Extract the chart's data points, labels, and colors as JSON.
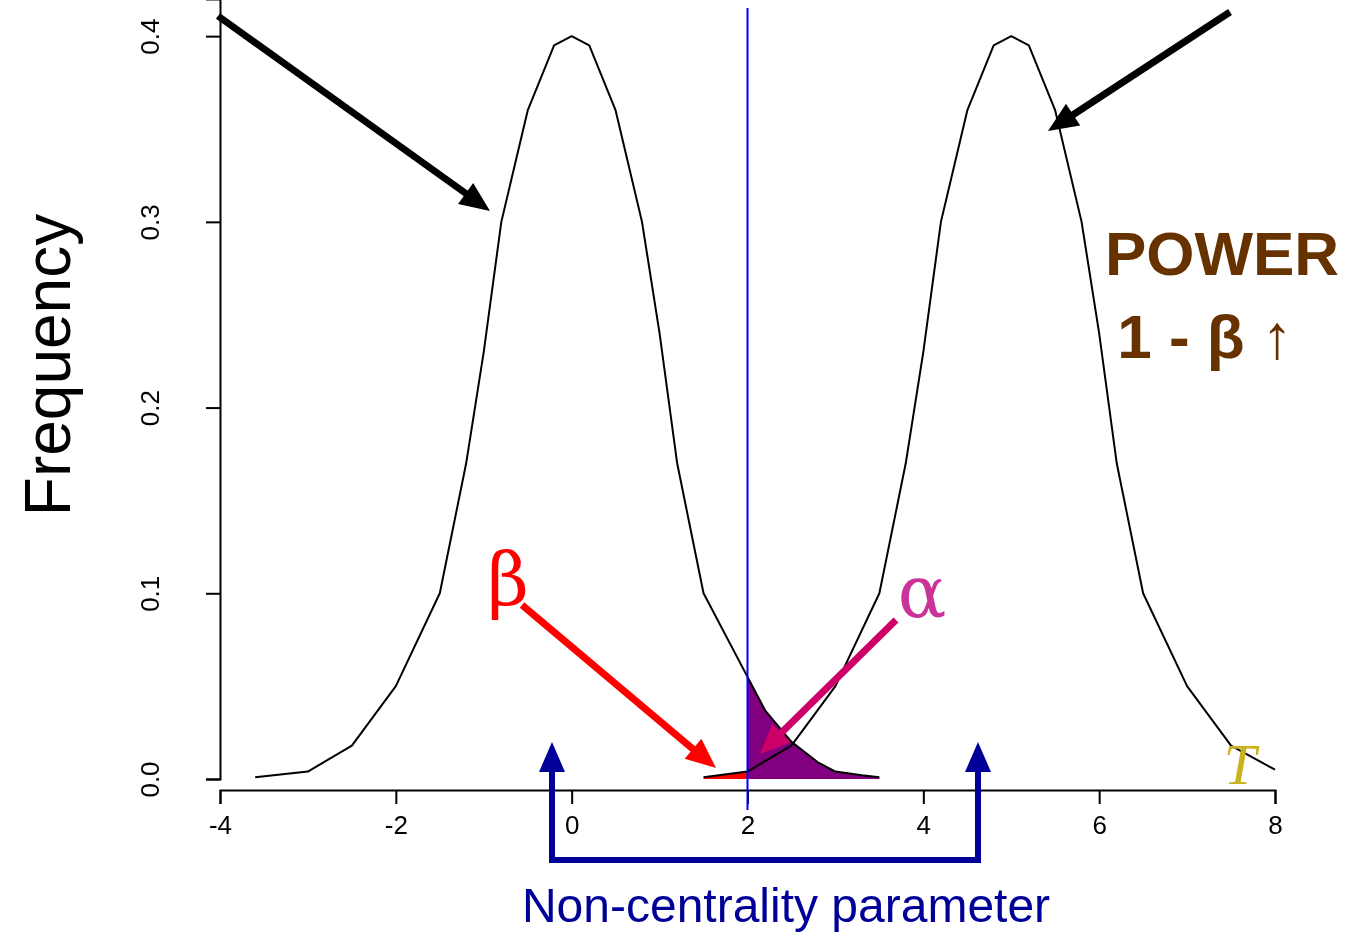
{
  "chart_data": {
    "type": "line",
    "ylabel": "Frequency",
    "xlim": [
      -4,
      8
    ],
    "ylim": [
      0,
      0.42
    ],
    "xticks": [
      -4,
      -2,
      0,
      2,
      4,
      6,
      8
    ],
    "yticks": [
      {
        "value": 0,
        "label": "0.0"
      },
      {
        "value": 0.1,
        "label": "0.1"
      },
      {
        "value": 0.2,
        "label": "0.2"
      },
      {
        "value": 0.3,
        "label": "0.3"
      },
      {
        "value": 0.4,
        "label": "0.4"
      }
    ],
    "series": [
      {
        "type": "area",
        "color": "#800080",
        "x": [
          2,
          2.2,
          2.5,
          2.8,
          3,
          3.3,
          3.5
        ],
        "values": [
          0.055,
          0.037,
          0.02,
          0.009,
          0.004,
          0.002,
          0.001
        ]
      },
      {
        "type": "area",
        "color": "#ff0000",
        "x": [
          1.5,
          1.7,
          2
        ],
        "values": [
          0.001,
          0.002,
          0.004
        ]
      },
      {
        "color": "#000000",
        "x": [
          -3.6,
          -3,
          -2.5,
          -2,
          -1.5,
          -1.2,
          -1,
          -0.8,
          -0.5,
          -0.2,
          0,
          0.2,
          0.5,
          0.8,
          1,
          1.2,
          1.5,
          2,
          2.2,
          2.5,
          2.8,
          3,
          3.3,
          3.5
        ],
        "values": [
          0.001,
          0.004,
          0.018,
          0.05,
          0.1,
          0.17,
          0.23,
          0.3,
          0.36,
          0.395,
          0.4,
          0.395,
          0.36,
          0.3,
          0.24,
          0.17,
          0.1,
          0.055,
          0.037,
          0.02,
          0.009,
          0.004,
          0.002,
          0.001
        ]
      },
      {
        "color": "#000000",
        "x": [
          1.5,
          2,
          2.5,
          3,
          3.5,
          3.8,
          4,
          4.2,
          4.5,
          4.8,
          5,
          5.2,
          5.5,
          5.8,
          6,
          6.2,
          6.5,
          7,
          7.5,
          8
        ],
        "values": [
          0.001,
          0.004,
          0.018,
          0.05,
          0.1,
          0.17,
          0.23,
          0.3,
          0.36,
          0.395,
          0.4,
          0.395,
          0.36,
          0.3,
          0.24,
          0.17,
          0.1,
          0.05,
          0.018,
          0.005
        ]
      }
    ],
    "ref_lines": [
      {
        "axis": "x",
        "value": 2,
        "color": "#0000ff"
      }
    ],
    "annotations": [
      "β",
      "α",
      "POWER",
      "1 - β ↑",
      "Non-centrality parameter",
      "T"
    ]
  }
}
